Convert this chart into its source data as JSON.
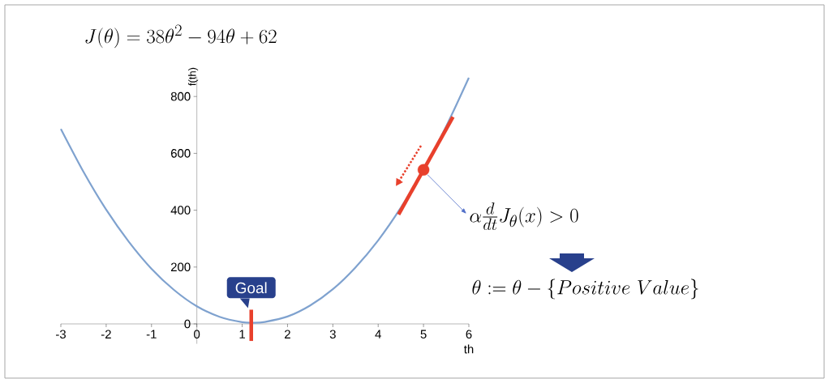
{
  "chart_data": {
    "type": "line",
    "title": "J(\\theta) = 38\\theta^2 - 94\\theta + 62",
    "xlabel": "th",
    "ylabel": "f(th)",
    "xlim": [
      -3,
      6
    ],
    "ylim": [
      -70,
      870
    ],
    "xticks": [
      -3,
      -2,
      -1,
      0,
      1,
      2,
      3,
      4,
      5,
      6
    ],
    "yticks": [
      0,
      200,
      400,
      600,
      800
    ],
    "grid": false,
    "series": [
      {
        "color": "#7fa2cf",
        "x": [
          -3,
          -2.5,
          -2,
          -1.5,
          -1,
          -0.5,
          0,
          0.5,
          1,
          1.25,
          1.5,
          2,
          2.5,
          3,
          3.5,
          4,
          4.5,
          5,
          5.5,
          6
        ],
        "values": [
          686,
          535,
          402,
          289,
          194,
          119,
          62,
          25,
          6,
          4,
          7,
          26,
          65,
          122,
          199,
          294,
          409,
          542,
          695,
          866
        ]
      },
      {
        "type": "line",
        "color": "#e8402c",
        "x": [
          4.45,
          5.65
        ],
        "values": [
          385,
          728
        ]
      },
      {
        "type": "line",
        "color": "#e8402c",
        "x": [
          1.2,
          1.2
        ],
        "values": [
          -60,
          50
        ]
      },
      {
        "type": "scatter",
        "color": "#e8402c",
        "marker": "circle",
        "x": [
          5
        ],
        "values": [
          542
        ]
      }
    ],
    "annotations": [
      {
        "text": "Goal",
        "x": 1.2,
        "y": 50
      },
      {
        "text": "\\alpha \\frac{d}{dt} J_{\\theta}(x) > 0",
        "x": 5,
        "y": 542
      },
      "\\theta := \\theta - \\{Positive\\ Value\\}"
    ]
  }
}
